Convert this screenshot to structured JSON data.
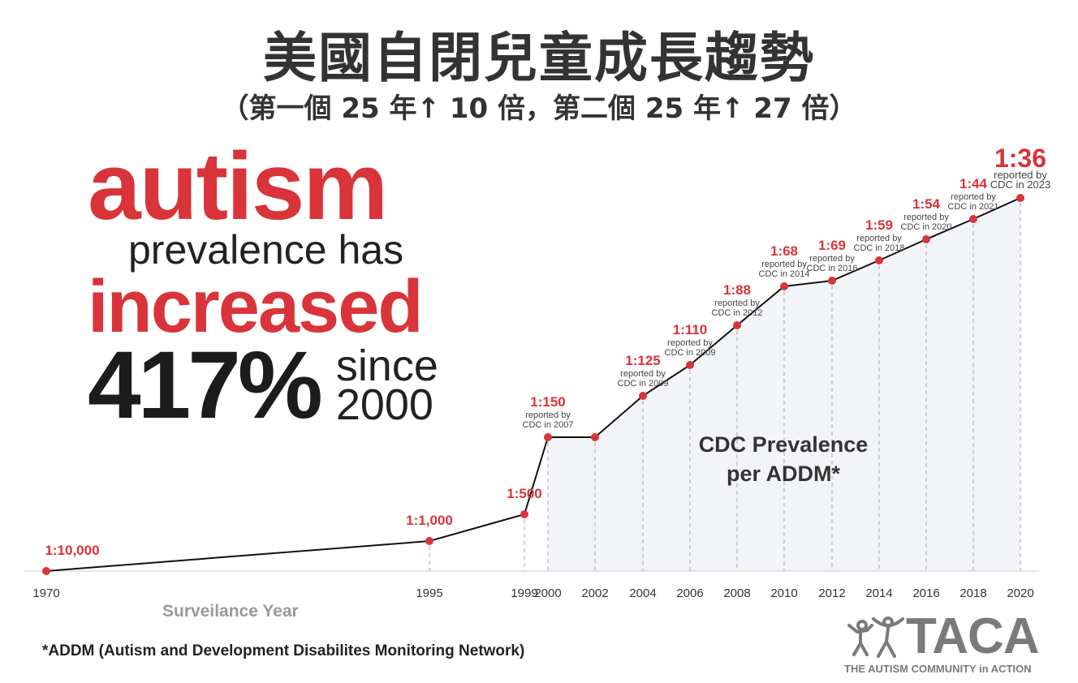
{
  "header": {
    "title": "美國自閉兒童成長趨勢",
    "subtitle": "（第一個 25 年↑ 10 倍，第二個 25 年↑ 27 倍）"
  },
  "hero": {
    "line1": "autism",
    "line2": "prevalence has",
    "line3": "increased",
    "percent": "417%",
    "since": "since",
    "year": "2000"
  },
  "chart_data": {
    "type": "line",
    "xlabel": "Surveilance Year",
    "series_label": [
      "CDC Prevalence",
      "per ADDM*"
    ],
    "x_ticks": [
      "1970",
      "1995",
      "1999",
      "2000",
      "2002",
      "2004",
      "2006",
      "2008",
      "2010",
      "2012",
      "2014",
      "2016",
      "2018",
      "2020"
    ],
    "points": [
      {
        "year": 1970,
        "label": "1:10,000",
        "note": []
      },
      {
        "year": 1995,
        "label": "1:1,000",
        "note": []
      },
      {
        "year": 1999,
        "label": "1:500",
        "note": []
      },
      {
        "year": 2000,
        "label": "1:150",
        "note": [
          "reported by",
          "CDC in 2007"
        ]
      },
      {
        "year": 2002,
        "label": "",
        "note": []
      },
      {
        "year": 2004,
        "label": "1:125",
        "note": [
          "reported by",
          "CDC in 2009"
        ]
      },
      {
        "year": 2006,
        "label": "1:110",
        "note": [
          "reported by",
          "CDC in 2009"
        ]
      },
      {
        "year": 2008,
        "label": "1:88",
        "note": [
          "reported by",
          "CDC in 2012"
        ]
      },
      {
        "year": 2010,
        "label": "1:68",
        "note": [
          "reported by",
          "CDC in 2014"
        ]
      },
      {
        "year": 2012,
        "label": "1:69",
        "note": [
          "reported by",
          "CDC in 2016"
        ]
      },
      {
        "year": 2014,
        "label": "1:59",
        "note": [
          "reported by",
          "CDC in 2018"
        ]
      },
      {
        "year": 2016,
        "label": "1:54",
        "note": [
          "reported by",
          "CDC in 2020"
        ]
      },
      {
        "year": 2018,
        "label": "1:44",
        "note": [
          "reported by",
          "CDC in 2021"
        ]
      },
      {
        "year": 2020,
        "label": "1:36",
        "note": [
          "reported by",
          "CDC in 2023"
        ]
      }
    ],
    "colors": {
      "point": "#d9343a",
      "line": "#111111",
      "area": "#f3f4f7",
      "label": "#d9343a"
    }
  },
  "footnote": "*ADDM (Autism and Development Disabilites Monitoring Network)",
  "logo": {
    "name": "TACA",
    "tagline": "THE AUTISM COMMUNITY in ACTION"
  }
}
